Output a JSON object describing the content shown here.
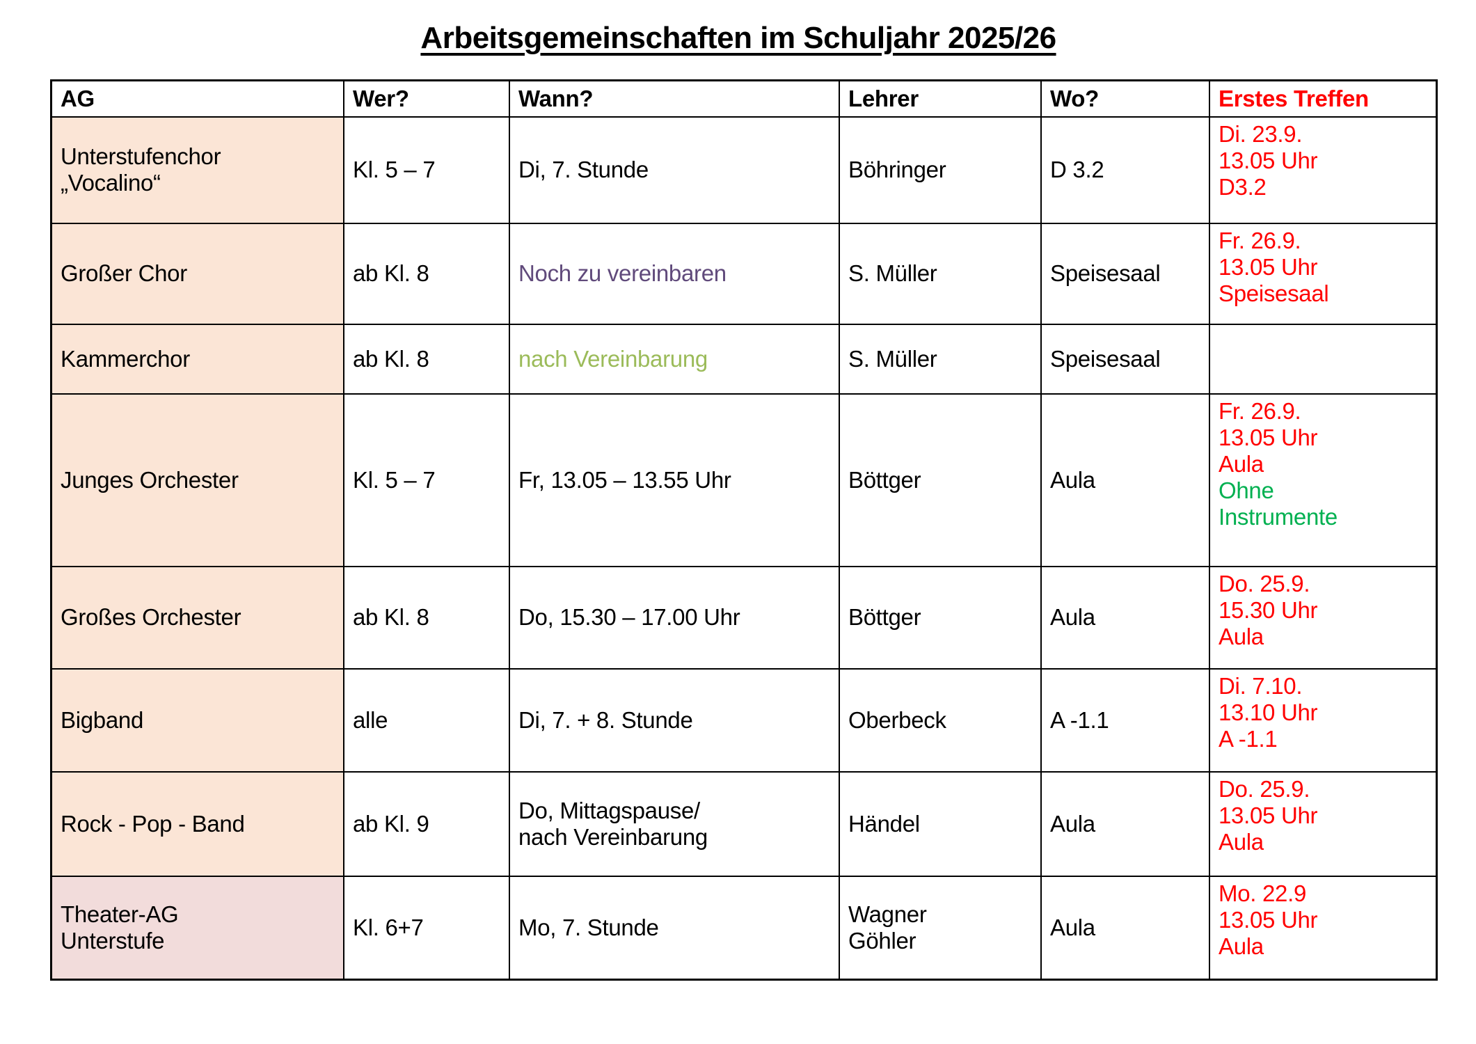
{
  "title": "Arbeitsgemeinschaften im Schuljahr 2025/26",
  "colors": {
    "header_accent_red": "#FF0000",
    "red": "#FF0000",
    "purple": "#604A7B",
    "olive_green": "#9BBB59",
    "green": "#00B050",
    "ag_bg_peach": "#FBE5D6",
    "ag_bg_pink": "#F2DCDB",
    "border_black": "#000000"
  },
  "table": {
    "columns": [
      {
        "key": "ag",
        "label": "AG",
        "color": "#000000"
      },
      {
        "key": "wer",
        "label": "Wer?",
        "color": "#000000"
      },
      {
        "key": "wann",
        "label": "Wann?",
        "color": "#000000"
      },
      {
        "key": "lehrer",
        "label": "Lehrer",
        "color": "#000000"
      },
      {
        "key": "wo",
        "label": "Wo?",
        "color": "#000000"
      },
      {
        "key": "treffen",
        "label": "Erstes Treffen",
        "color": "#FF0000"
      }
    ],
    "rows": [
      {
        "ag_bg": "#FBE5D6",
        "cells": {
          "ag": [
            {
              "text": "Unterstufenchor"
            },
            {
              "text": "„Vocalino“"
            }
          ],
          "wer": [
            {
              "text": "Kl. 5 – 7"
            }
          ],
          "wann": [
            {
              "text": "Di, 7. Stunde"
            }
          ],
          "lehrer": [
            {
              "text": "Böhringer"
            }
          ],
          "wo": [
            {
              "text": "D 3.2"
            }
          ],
          "treffen": [
            {
              "text": "Di. 23.9.",
              "color": "#FF0000"
            },
            {
              "text": "13.05 Uhr",
              "color": "#FF0000"
            },
            {
              "text": "D3.2",
              "color": "#FF0000"
            }
          ]
        }
      },
      {
        "ag_bg": "#FBE5D6",
        "cells": {
          "ag": [
            {
              "text": "Großer Chor"
            }
          ],
          "wer": [
            {
              "text": "ab Kl. 8"
            }
          ],
          "wann": [
            {
              "text": "Noch zu vereinbaren",
              "color": "#604A7B"
            }
          ],
          "lehrer": [
            {
              "text": "S. Müller"
            }
          ],
          "wo": [
            {
              "text": "Speisesaal"
            }
          ],
          "treffen": [
            {
              "text": "Fr. 26.9.",
              "color": "#FF0000"
            },
            {
              "text": "13.05 Uhr",
              "color": "#FF0000"
            },
            {
              "text": "Speisesaal",
              "color": "#FF0000"
            }
          ]
        }
      },
      {
        "ag_bg": "#FBE5D6",
        "cells": {
          "ag": [
            {
              "text": "Kammerchor"
            }
          ],
          "wer": [
            {
              "text": "ab Kl. 8"
            }
          ],
          "wann": [
            {
              "text": "nach Vereinbarung",
              "color": "#9BBB59"
            }
          ],
          "lehrer": [
            {
              "text": "S. Müller"
            }
          ],
          "wo": [
            {
              "text": "Speisesaal"
            }
          ],
          "treffen": []
        }
      },
      {
        "ag_bg": "#FBE5D6",
        "cells": {
          "ag": [
            {
              "text": "Junges Orchester"
            }
          ],
          "wer": [
            {
              "text": "Kl. 5 – 7"
            }
          ],
          "wann": [
            {
              "text": "Fr, 13.05 – 13.55 Uhr"
            }
          ],
          "lehrer": [
            {
              "text": "Böttger"
            }
          ],
          "wo": [
            {
              "text": "Aula"
            }
          ],
          "treffen": [
            {
              "text": "Fr. 26.9.",
              "color": "#FF0000"
            },
            {
              "text": "13.05 Uhr",
              "color": "#FF0000"
            },
            {
              "text": "Aula",
              "color": "#FF0000"
            },
            {
              "text": "Ohne",
              "color": "#00B050"
            },
            {
              "text": "Instrumente",
              "color": "#00B050"
            }
          ]
        }
      },
      {
        "ag_bg": "#FBE5D6",
        "cells": {
          "ag": [
            {
              "text": "Großes Orchester"
            }
          ],
          "wer": [
            {
              "text": "ab Kl. 8"
            }
          ],
          "wann": [
            {
              "text": "Do, 15.30 – 17.00 Uhr"
            }
          ],
          "lehrer": [
            {
              "text": "Böttger"
            }
          ],
          "wo": [
            {
              "text": "Aula"
            }
          ],
          "treffen": [
            {
              "text": "Do. 25.9.",
              "color": "#FF0000"
            },
            {
              "text": "15.30 Uhr",
              "color": "#FF0000"
            },
            {
              "text": "Aula",
              "color": "#FF0000"
            }
          ]
        }
      },
      {
        "ag_bg": "#FBE5D6",
        "cells": {
          "ag": [
            {
              "text": "Bigband"
            }
          ],
          "wer": [
            {
              "text": "alle"
            }
          ],
          "wann": [
            {
              "text": "Di, 7. + 8. Stunde"
            }
          ],
          "lehrer": [
            {
              "text": "Oberbeck"
            }
          ],
          "wo": [
            {
              "text": "A -1.1"
            }
          ],
          "treffen": [
            {
              "text": "Di. 7.10.",
              "color": "#FF0000"
            },
            {
              "text": "13.10 Uhr",
              "color": "#FF0000"
            },
            {
              "text": "A -1.1",
              "color": "#FF0000"
            }
          ]
        }
      },
      {
        "ag_bg": "#FBE5D6",
        "cells": {
          "ag": [
            {
              "text": "Rock - Pop - Band"
            }
          ],
          "wer": [
            {
              "text": "ab Kl. 9"
            }
          ],
          "wann": [
            {
              "text": "Do, Mittagspause/"
            },
            {
              "text": "nach Vereinbarung"
            }
          ],
          "lehrer": [
            {
              "text": "Händel"
            }
          ],
          "wo": [
            {
              "text": "Aula"
            }
          ],
          "treffen": [
            {
              "text": "Do. 25.9.",
              "color": "#FF0000"
            },
            {
              "text": "13.05 Uhr",
              "color": "#FF0000"
            },
            {
              "text": "Aula",
              "color": "#FF0000"
            }
          ]
        }
      },
      {
        "ag_bg": "#F2DCDB",
        "cells": {
          "ag": [
            {
              "text": "Theater-AG"
            },
            {
              "text": "Unterstufe"
            }
          ],
          "wer": [
            {
              "text": "Kl. 6+7"
            }
          ],
          "wann": [
            {
              "text": "Mo, 7. Stunde"
            }
          ],
          "lehrer": [
            {
              "text": "Wagner"
            },
            {
              "text": "Göhler"
            }
          ],
          "wo": [
            {
              "text": "Aula"
            }
          ],
          "treffen": [
            {
              "text": "Mo. 22.9",
              "color": "#FF0000"
            },
            {
              "text": "13.05 Uhr",
              "color": "#FF0000"
            },
            {
              "text": "Aula",
              "color": "#FF0000"
            }
          ]
        }
      }
    ]
  }
}
